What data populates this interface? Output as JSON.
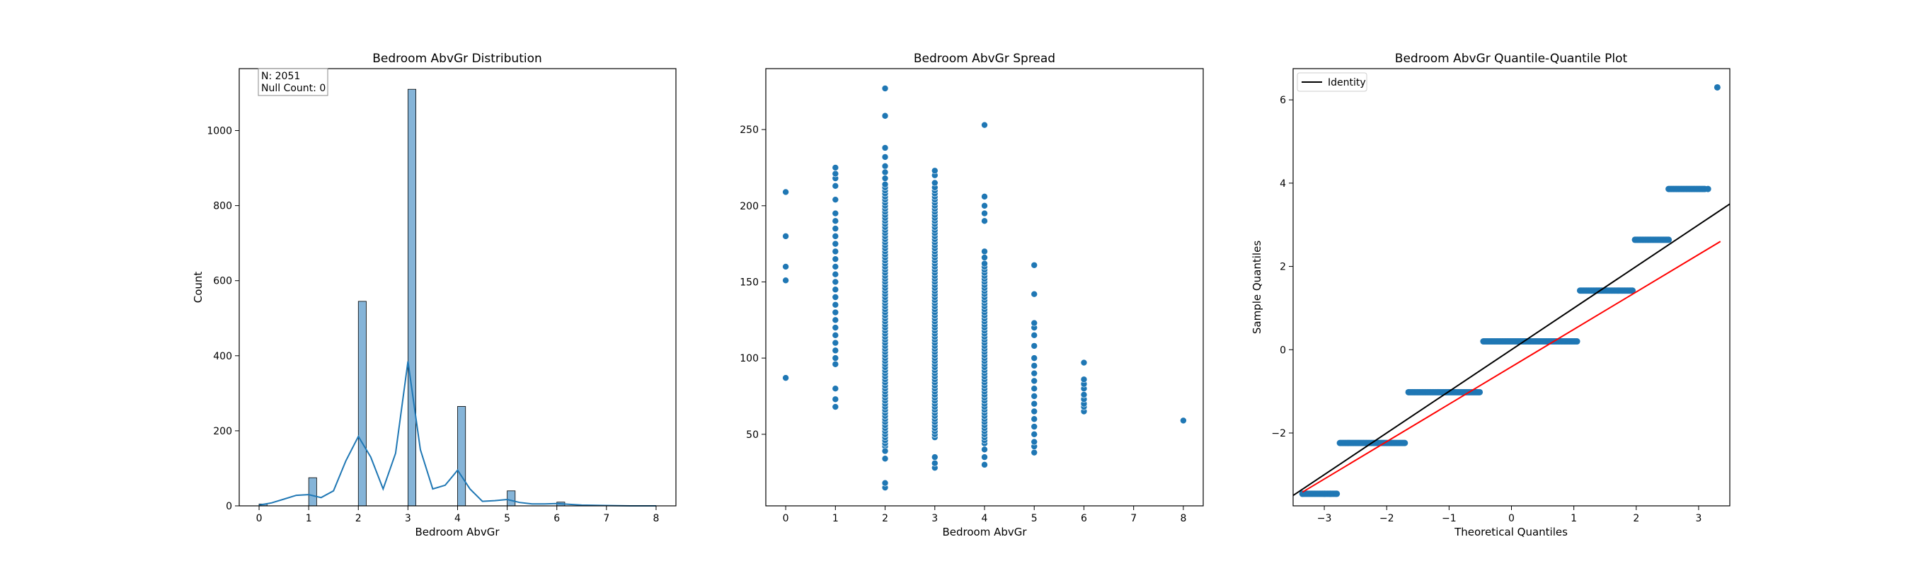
{
  "colors": {
    "primary": "#1f77b4",
    "bar_fill": "#85b4d8",
    "identity_line": "#000000",
    "fit_line": "#ff0000",
    "axes": "#000000"
  },
  "chart_data": [
    {
      "type": "bar",
      "title": "Bedroom AbvGr Distribution",
      "xlabel": "Bedroom AbvGr",
      "ylabel": "Count",
      "xlim": [
        -0.4,
        8.4
      ],
      "ylim": [
        0,
        1165
      ],
      "xticks": [
        "0",
        "1",
        "2",
        "3",
        "4",
        "5",
        "6",
        "7",
        "8"
      ],
      "yticks": [
        "0",
        "200",
        "400",
        "600",
        "800",
        "1000"
      ],
      "annotation": [
        "N: 2051",
        "Null Count: 0"
      ],
      "bins": [
        0,
        1,
        2,
        3,
        4,
        5,
        6
      ],
      "values": [
        5,
        75,
        545,
        1110,
        265,
        40,
        10
      ],
      "kde": {
        "x": [
          0,
          0.25,
          0.5,
          0.75,
          1,
          1.25,
          1.5,
          1.75,
          2,
          2.25,
          2.5,
          2.75,
          3,
          3.25,
          3.5,
          3.75,
          4,
          4.25,
          4.5,
          4.75,
          5,
          5.25,
          5.5,
          5.75,
          6,
          6.5,
          7,
          7.5,
          8
        ],
        "y": [
          2,
          8,
          18,
          28,
          30,
          22,
          40,
          120,
          185,
          130,
          45,
          140,
          385,
          150,
          45,
          55,
          95,
          45,
          12,
          14,
          17,
          9,
          5,
          5,
          6,
          2,
          1,
          0,
          0
        ]
      }
    },
    {
      "type": "scatter",
      "title": "Bedroom AbvGr Spread",
      "xlabel": "Bedroom AbvGr",
      "ylabel": "",
      "xlim": [
        -0.4,
        8.4
      ],
      "ylim": [
        3,
        290
      ],
      "xticks": [
        "0",
        "1",
        "2",
        "3",
        "4",
        "5",
        "6",
        "7",
        "8"
      ],
      "yticks": [
        "50",
        "100",
        "150",
        "200",
        "250"
      ],
      "points_by_x": [
        {
          "x": 0,
          "y": [
            87,
            151,
            160,
            180,
            209
          ]
        },
        {
          "x": 1,
          "y": [
            68,
            73,
            80,
            96,
            100,
            105,
            110,
            115,
            120,
            125,
            130,
            135,
            140,
            145,
            150,
            155,
            160,
            165,
            170,
            175,
            180,
            185,
            190,
            195,
            204,
            213,
            218,
            221,
            225
          ]
        },
        {
          "x": 2,
          "y": [
            15,
            18,
            34,
            39,
            277,
            259,
            238,
            232,
            226,
            222,
            218,
            214
          ]
        },
        {
          "x": 3,
          "y": [
            28,
            31,
            35,
            215,
            220,
            223
          ]
        },
        {
          "x": 4,
          "y": [
            30,
            35,
            40,
            253,
            206,
            200,
            195,
            190,
            170,
            166
          ]
        },
        {
          "x": 5,
          "y": [
            38,
            42,
            45,
            50,
            55,
            60,
            65,
            70,
            75,
            80,
            85,
            90,
            95,
            100,
            108,
            115,
            120,
            123,
            142,
            161
          ]
        },
        {
          "x": 6,
          "y": [
            65,
            68,
            70,
            73,
            76,
            80,
            83,
            86,
            97
          ]
        },
        {
          "x": 8,
          "y": [
            59
          ]
        }
      ],
      "dense_ranges": [
        {
          "x": 2,
          "from": 42,
          "to": 212
        },
        {
          "x": 3,
          "from": 48,
          "to": 212
        },
        {
          "x": 4,
          "from": 44,
          "to": 162
        }
      ]
    },
    {
      "type": "scatter",
      "title": "Bedroom AbvGr Quantile-Quantile Plot",
      "xlabel": "Theoretical Quantiles",
      "ylabel": "Sample Quantiles",
      "xlim": [
        -3.5,
        3.5
      ],
      "ylim": [
        -3.75,
        6.75
      ],
      "xticks": [
        "−3",
        "−2",
        "−1",
        "0",
        "1",
        "2",
        "3"
      ],
      "yticks": [
        "−2",
        "0",
        "2",
        "4",
        "6"
      ],
      "legend": {
        "label": "Identity",
        "position": "upper-left"
      },
      "steps": [
        {
          "y": -3.46,
          "from": -3.35,
          "to": -2.8
        },
        {
          "y": -2.24,
          "from": -2.75,
          "to": -1.7
        },
        {
          "y": -1.02,
          "from": -1.65,
          "to": -0.5
        },
        {
          "y": 0.2,
          "from": -0.45,
          "to": 1.05
        },
        {
          "y": 1.42,
          "from": 1.1,
          "to": 1.95
        },
        {
          "y": 2.64,
          "from": 1.98,
          "to": 2.52
        },
        {
          "y": 3.86,
          "from": 2.52,
          "to": 3.1
        }
      ],
      "extra_points": [
        [
          -3.35,
          -3.46
        ],
        [
          -3.0,
          -3.46
        ],
        [
          -2.9,
          -3.46
        ],
        [
          -2.8,
          -3.46
        ],
        [
          3.15,
          3.86
        ],
        [
          3.3,
          6.3
        ]
      ],
      "identity_line": [
        [
          -3.5,
          -3.5
        ],
        [
          3.5,
          3.5
        ]
      ],
      "fit_line": [
        [
          -3.35,
          -3.42
        ],
        [
          3.35,
          2.6
        ]
      ]
    }
  ]
}
